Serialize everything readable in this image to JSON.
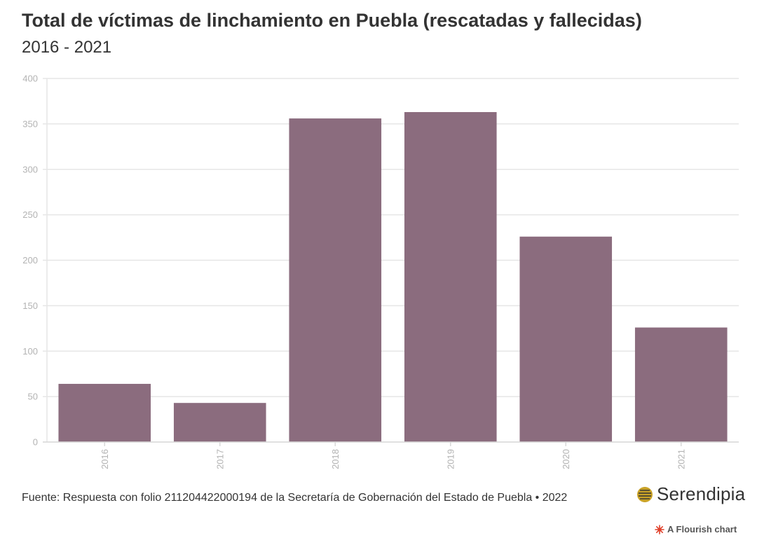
{
  "header": {
    "title": "Total de víctimas de linchamiento en Puebla (rescatadas y fallecidas)",
    "subtitle": "2016 - 2021"
  },
  "footer": {
    "source": "Fuente: Respuesta con folio 211204422000194 de la Secretaría de Gobernación del Estado de Puebla • 2022",
    "logo_text": "Serendipia",
    "flourish_credit": "A Flourish chart"
  },
  "colors": {
    "bar": "#8b6c7e",
    "grid": "#e6e6e6",
    "tick": "#b3b3b3",
    "logo_disc": "#c9a227",
    "flourish_mark": "#e0402a"
  },
  "chart_data": {
    "type": "bar",
    "title": "Total de víctimas de linchamiento en Puebla (rescatadas y fallecidas)",
    "subtitle": "2016 - 2021",
    "categories": [
      "2016",
      "2017",
      "2018",
      "2019",
      "2020",
      "2021"
    ],
    "values": [
      64,
      43,
      356,
      363,
      226,
      126
    ],
    "ylim": [
      0,
      400
    ],
    "yticks": [
      0,
      50,
      100,
      150,
      200,
      250,
      300,
      350,
      400
    ],
    "xlabel": "",
    "ylabel": "",
    "grid": true,
    "legend": "none"
  }
}
